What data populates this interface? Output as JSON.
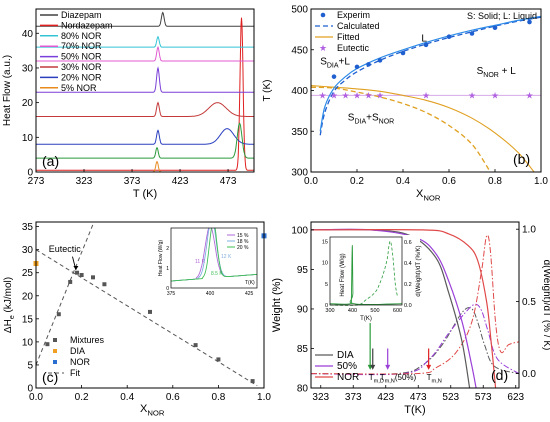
{
  "figure": {
    "panels": [
      "(a)",
      "(b)",
      "(c)",
      "(d)"
    ]
  },
  "chart_data": [
    {
      "id": "a",
      "type": "line",
      "panel_label": "(a)",
      "xlabel": "T (K)",
      "ylabel": "Heat Flow (a.u.)",
      "xlim": [
        273,
        500
      ],
      "ylim": [
        0,
        47
      ],
      "xticks": [
        "273",
        "323",
        "373",
        "423",
        "473"
      ],
      "yticks": [
        "0",
        "10",
        "20",
        "30",
        "40"
      ],
      "legend_position": "top-left",
      "series": [
        {
          "name": "Diazepam",
          "color": "#404040",
          "base": 42.0,
          "peaks": [
            {
              "x": 405,
              "h": 4.0,
              "w": 1.4
            }
          ]
        },
        {
          "name": "Nordazepam",
          "color": "#e02020",
          "base": 0.5,
          "peaks": [
            {
              "x": 487,
              "h": 44.0,
              "w": 1.6
            }
          ]
        },
        {
          "name": "80% NOR",
          "color": "#33c4d6",
          "base": 36.0,
          "peaks": [
            {
              "x": 400,
              "h": 3.0,
              "w": 1.3
            }
          ]
        },
        {
          "name": "70% NOR",
          "color": "#e05bd0",
          "base": 32.0,
          "peaks": [
            {
              "x": 400,
              "h": 4.0,
              "w": 1.3
            }
          ]
        },
        {
          "name": "50% NOR",
          "color": "#7a3fd8",
          "base": 23.0,
          "peaks": [
            {
              "x": 400,
              "h": 7.0,
              "w": 1.4
            }
          ]
        },
        {
          "name": "30% NOR",
          "color": "#c43a3a",
          "base": 16.0,
          "peaks": [
            {
              "x": 400,
              "h": 4.0,
              "w": 1.4
            },
            {
              "x": 462,
              "h": 4.0,
              "w": 9.0
            }
          ]
        },
        {
          "name": "20% NOR",
          "color": "#2a3fbf",
          "base": 8.0,
          "peaks": [
            {
              "x": 400,
              "h": 4.0,
              "w": 1.4
            },
            {
              "x": 472,
              "h": 4.5,
              "w": 7.0
            }
          ]
        },
        {
          "name": "5% NOR",
          "color": "#e88a1e",
          "base": 0.0,
          "peaks": [
            {
              "x": 399,
              "h": 3.0,
              "w": 1.3
            }
          ]
        },
        {
          "name": "",
          "color": "#2a9a3a",
          "base": 4.0,
          "peaks": [
            {
              "x": 399,
              "h": 3.0,
              "w": 1.3
            },
            {
              "x": 485,
              "h": 10.0,
              "w": 2.5
            }
          ]
        }
      ]
    },
    {
      "id": "b",
      "type": "scatter",
      "panel_label": "(b)",
      "xlabel": "X",
      "xlabel_sub": "NOR",
      "ylabel": "T (K)",
      "xlim": [
        0.0,
        1.0
      ],
      "ylim": [
        300,
        500
      ],
      "xticks": [
        "0.0",
        "0.2",
        "0.4",
        "0.6",
        "0.8",
        "1.0"
      ],
      "yticks": [
        "300",
        "350",
        "400",
        "450",
        "500"
      ],
      "legend_position": "top-left",
      "legend": [
        "Experim",
        "Calculated",
        "Fitted",
        "Eutectic"
      ],
      "legend_note": "S: Solid; L: Liquid",
      "region_labels": [
        {
          "t": "S",
          "sub": "DIA",
          "rest": "+L",
          "x": 0.04,
          "y": 432
        },
        {
          "t": "L",
          "sub": "",
          "rest": "",
          "x": 0.48,
          "y": 460
        },
        {
          "t": "S",
          "sub": "NOR",
          "rest": " + L",
          "x": 0.72,
          "y": 420
        },
        {
          "t": "S",
          "sub": "DIA",
          "rest": "+S",
          "sub2": "NOR",
          "x": 0.16,
          "y": 363
        }
      ],
      "experimental": [
        [
          0.1,
          417
        ],
        [
          0.2,
          429
        ],
        [
          0.25,
          432
        ],
        [
          0.3,
          437
        ],
        [
          0.4,
          446
        ],
        [
          0.5,
          456
        ],
        [
          0.6,
          466
        ],
        [
          0.7,
          470
        ],
        [
          0.8,
          477
        ],
        [
          0.95,
          484
        ]
      ],
      "eutectic": [
        [
          0.05,
          394
        ],
        [
          0.1,
          394
        ],
        [
          0.15,
          394
        ],
        [
          0.2,
          394
        ],
        [
          0.25,
          394
        ],
        [
          0.3,
          394
        ],
        [
          0.5,
          394
        ],
        [
          0.7,
          394
        ],
        [
          0.8,
          394
        ],
        [
          0.95,
          394
        ]
      ],
      "liquidus_calculated": [
        [
          0.04,
          345
        ],
        [
          0.06,
          373
        ],
        [
          0.1,
          399
        ],
        [
          0.15,
          413
        ],
        [
          0.2,
          423
        ],
        [
          0.3,
          437
        ],
        [
          0.4,
          448
        ],
        [
          0.5,
          457
        ],
        [
          0.6,
          465
        ],
        [
          0.7,
          472
        ],
        [
          0.8,
          479
        ],
        [
          0.9,
          485
        ],
        [
          1.0,
          490
        ]
      ],
      "liquidus_fitted": [
        [
          0.04,
          350
        ],
        [
          0.06,
          380
        ],
        [
          0.1,
          403
        ],
        [
          0.15,
          417
        ],
        [
          0.2,
          427
        ],
        [
          0.3,
          440
        ],
        [
          0.4,
          450
        ],
        [
          0.5,
          459
        ],
        [
          0.6,
          467
        ],
        [
          0.7,
          474
        ],
        [
          0.8,
          480
        ],
        [
          0.9,
          486
        ],
        [
          1.0,
          491
        ]
      ],
      "dia_liquidus_calculated": [
        [
          0.0,
          404
        ],
        [
          0.1,
          403
        ],
        [
          0.2,
          398
        ],
        [
          0.3,
          392
        ],
        [
          0.4,
          384
        ],
        [
          0.5,
          373
        ],
        [
          0.6,
          357
        ],
        [
          0.7,
          334
        ],
        [
          0.78,
          300
        ]
      ],
      "dia_liquidus_fitted": [
        [
          0.0,
          406
        ],
        [
          0.1,
          404
        ],
        [
          0.2,
          402
        ],
        [
          0.3,
          399
        ],
        [
          0.4,
          394
        ],
        [
          0.5,
          388
        ],
        [
          0.6,
          379
        ],
        [
          0.7,
          366
        ],
        [
          0.8,
          348
        ],
        [
          0.9,
          324
        ],
        [
          0.97,
          300
        ]
      ]
    },
    {
      "id": "c",
      "type": "scatter",
      "panel_label": "(c)",
      "xlabel": "X",
      "xlabel_sub": "NOR",
      "ylabel": "ΔH",
      "ylabel_sub": "e",
      "ylabel_unit": " (kJ/mol)",
      "xlim": [
        0.0,
        1.0
      ],
      "ylim": [
        0,
        36
      ],
      "xticks": [
        "0.0",
        "0.2",
        "0.4",
        "0.6",
        "0.8",
        "1.0"
      ],
      "yticks": [
        "0",
        "5",
        "10",
        "15",
        "20",
        "25",
        "30",
        "35"
      ],
      "legend_position": "bottom-left",
      "legend": [
        "Mixtures",
        "DIA",
        "NOR",
        "Fit"
      ],
      "annotation": "Eutectic",
      "mixtures": [
        [
          0.05,
          9.5
        ],
        [
          0.1,
          16.0
        ],
        [
          0.15,
          23.0
        ],
        [
          0.18,
          25.0
        ],
        [
          0.2,
          24.5
        ],
        [
          0.25,
          24.0
        ],
        [
          0.3,
          22.5
        ],
        [
          0.5,
          16.5
        ],
        [
          0.7,
          9.3
        ],
        [
          0.8,
          6.2
        ],
        [
          0.95,
          1.5
        ]
      ],
      "dia": [
        [
          0.0,
          27.0
        ]
      ],
      "nor": [
        [
          1.0,
          33.0
        ]
      ],
      "fit_lines": [
        [
          [
            0.0,
            5.0
          ],
          [
            0.25,
            35.5
          ]
        ],
        [
          [
            0.0,
            30.0
          ],
          [
            0.97,
            0.5
          ]
        ]
      ],
      "inset": {
        "ylabel": "Heat Flow (W/g)",
        "xlabel": "T(K)",
        "xlim": [
          375,
          430
        ],
        "ylim": [
          0.0,
          3.0
        ],
        "xticks": [
          "375",
          "400",
          "425"
        ],
        "yticks": [
          "0",
          "1",
          "2"
        ],
        "legend": [
          "15 %",
          "18 %",
          "20 %"
        ],
        "annotations": [
          "11 K",
          "12 K",
          "8.5 K"
        ],
        "series": [
          {
            "name": "15 %",
            "color": "#b06ad8",
            "onset": 391,
            "peak": 400,
            "height": 2.6,
            "width": 3.2
          },
          {
            "name": "18 %",
            "color": "#7fb0e0",
            "onset": 392,
            "peak": 401,
            "height": 2.9,
            "width": 3.0
          },
          {
            "name": "20 %",
            "color": "#3fbf55",
            "onset": 395,
            "peak": 402,
            "height": 2.8,
            "width": 2.4
          }
        ]
      }
    },
    {
      "id": "d",
      "type": "line",
      "panel_label": "(d)",
      "xlabel": "T(K)",
      "ylabel": "Weight (%)",
      "ylabel_right": "d(Weight)/dT (% / K)",
      "xlim": [
        308,
        628
      ],
      "ylim": [
        80,
        101
      ],
      "ylim_right": [
        -0.1,
        1.05
      ],
      "xticks": [
        "323",
        "373",
        "423",
        "473",
        "523",
        "573",
        "623"
      ],
      "yticks": [
        "80",
        "85",
        "90",
        "95",
        "100"
      ],
      "yticks_right": [
        "0.0",
        "0.5",
        "1.0"
      ],
      "legend_position": "bottom-left",
      "legend": [
        "DIA",
        "50%",
        "NOR"
      ],
      "markers": [
        {
          "label": "T",
          "sub": "e",
          "x": 399,
          "color": "#2a9a3a",
          "y_top": 88.8,
          "y_bottom": 82.3
        },
        {
          "label": "T",
          "sub": "m,D",
          "x": 403,
          "color": "#404040",
          "y_top": 85.0,
          "y_bottom": 82.3
        },
        {
          "label": "T",
          "sub": "m,N",
          "suffix": "(50%)",
          "x": 426,
          "color": "#9a3fd8",
          "y_top": 85.0,
          "y_bottom": 82.3
        },
        {
          "label": "T",
          "sub": "m,N",
          "x": 489,
          "color": "#e02020",
          "y_top": 85.0,
          "y_bottom": 82.3
        }
      ],
      "series": [
        {
          "name": "DIA",
          "color": "#5a5a5a",
          "points": [
            [
              308,
              100
            ],
            [
              400,
              100
            ],
            [
              460,
              99.3
            ],
            [
              500,
              96.5
            ],
            [
              520,
              92
            ],
            [
              540,
              86
            ],
            [
              552,
              80
            ]
          ]
        },
        {
          "name": "50%",
          "color": "#9a3fd8",
          "points": [
            [
              308,
              100
            ],
            [
              400,
              100
            ],
            [
              470,
              99
            ],
            [
              500,
              97
            ],
            [
              520,
              93.5
            ],
            [
              540,
              88.5
            ],
            [
              555,
              83
            ],
            [
              562,
              80
            ]
          ]
        },
        {
          "name": "NOR",
          "color": "#e04848",
          "points": [
            [
              308,
              100
            ],
            [
              480,
              100
            ],
            [
              520,
              99.5
            ],
            [
              550,
              98
            ],
            [
              565,
              96
            ],
            [
              578,
              91
            ],
            [
              585,
              86
            ],
            [
              592,
              80
            ]
          ]
        }
      ],
      "derivative_series": [
        {
          "name": "DIA",
          "color": "#5a5a5a",
          "points": [
            [
              308,
              0.0
            ],
            [
              440,
              0.0
            ],
            [
              480,
              0.06
            ],
            [
              510,
              0.2
            ],
            [
              540,
              0.42
            ],
            [
              555,
              0.45
            ],
            [
              565,
              0.35
            ],
            [
              575,
              0.2
            ],
            [
              590,
              0.05
            ],
            [
              628,
              0.0
            ]
          ]
        },
        {
          "name": "50%",
          "color": "#9a3fd8",
          "points": [
            [
              308,
              0.0
            ],
            [
              450,
              0.0
            ],
            [
              490,
              0.1
            ],
            [
              520,
              0.28
            ],
            [
              545,
              0.42
            ],
            [
              560,
              0.48
            ],
            [
              570,
              0.44
            ],
            [
              580,
              0.3
            ],
            [
              595,
              0.1
            ],
            [
              628,
              0.0
            ]
          ]
        },
        {
          "name": "NOR",
          "color": "#e04848",
          "points": [
            [
              308,
              0.0
            ],
            [
              470,
              0.0
            ],
            [
              500,
              0.04
            ],
            [
              530,
              0.14
            ],
            [
              555,
              0.35
            ],
            [
              570,
              0.7
            ],
            [
              578,
              0.95
            ],
            [
              584,
              0.85
            ],
            [
              592,
              0.35
            ],
            [
              600,
              0.15
            ],
            [
              612,
              0.2
            ],
            [
              628,
              0.22
            ]
          ]
        }
      ],
      "inset": {
        "ylabel": "Heat Flow (W/g)",
        "ylabel_right": "d(Weight)/dT (%/K)",
        "xlabel": "T(K)",
        "xlim": [
          300,
          620
        ],
        "ylim": [
          0,
          16
        ],
        "ylim_right": [
          0.0,
          0.65
        ],
        "xticks": [
          "300",
          "400",
          "500",
          "600"
        ],
        "yticks": [
          "0",
          "5",
          "10",
          "15"
        ],
        "yticks_right": [
          "0.0",
          "0.2",
          "0.4",
          "0.6"
        ],
        "heat_flow": [
          [
            300,
            0.3
          ],
          [
            390,
            0.3
          ],
          [
            395,
            2
          ],
          [
            399,
            14
          ],
          [
            402,
            3
          ],
          [
            406,
            0.3
          ],
          [
            620,
            0.3
          ]
        ],
        "derivative": [
          [
            300,
            0.0
          ],
          [
            420,
            0.0
          ],
          [
            460,
            0.05
          ],
          [
            500,
            0.12
          ],
          [
            520,
            0.2
          ],
          [
            540,
            0.32
          ],
          [
            555,
            0.45
          ],
          [
            563,
            0.58
          ],
          [
            570,
            0.6
          ],
          [
            580,
            0.45
          ],
          [
            590,
            0.2
          ],
          [
            600,
            0.08
          ]
        ]
      }
    }
  ]
}
